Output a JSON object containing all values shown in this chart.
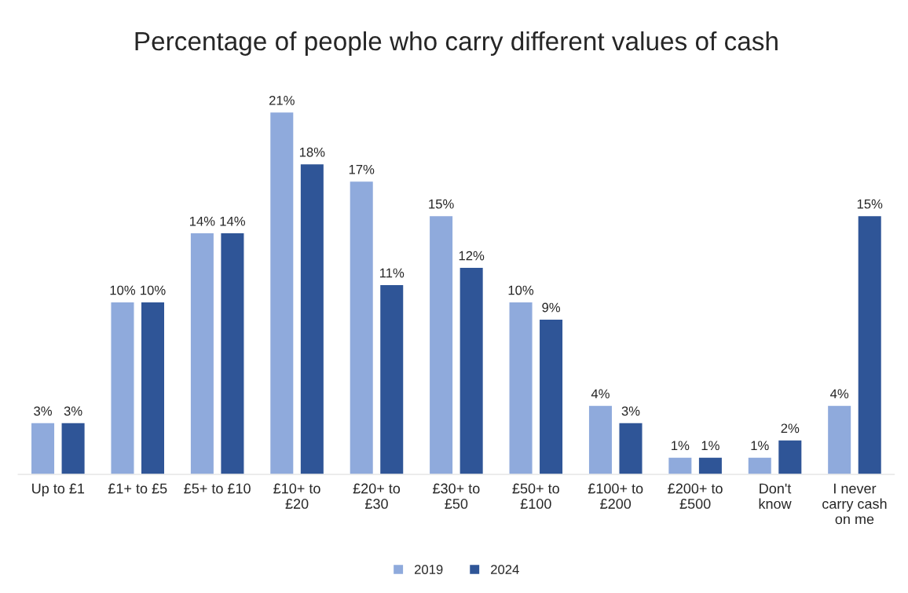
{
  "chart_data": {
    "type": "bar",
    "title": "Percentage of people who carry different values of cash",
    "categories": [
      "Up to £1",
      "£1+ to £5",
      "£5+ to £10",
      "£10+ to\n£20",
      "£20+ to\n£30",
      "£30+ to\n£50",
      "£50+ to\n£100",
      "£100+ to\n£200",
      "£200+ to\n£500",
      "Don't\nknow",
      "I never\ncarry cash\non me"
    ],
    "series": [
      {
        "name": "2019",
        "color": "#8faadc",
        "values": [
          3,
          10,
          14,
          21,
          17,
          15,
          10,
          4,
          1,
          1,
          4
        ],
        "value_labels": [
          "3%",
          "10%",
          "14%",
          "21%",
          "17%",
          "15%",
          "10%",
          "4%",
          "1%",
          "1%",
          "4%"
        ]
      },
      {
        "name": "2024",
        "color": "#2f5597",
        "values": [
          3,
          10,
          14,
          18,
          11,
          12,
          9,
          3,
          1,
          2,
          15
        ],
        "value_labels": [
          "3%",
          "10%",
          "14%",
          "18%",
          "11%",
          "12%",
          "9%",
          "3%",
          "1%",
          "2%",
          "15%"
        ]
      }
    ],
    "legend": "bottom",
    "grid": false
  }
}
